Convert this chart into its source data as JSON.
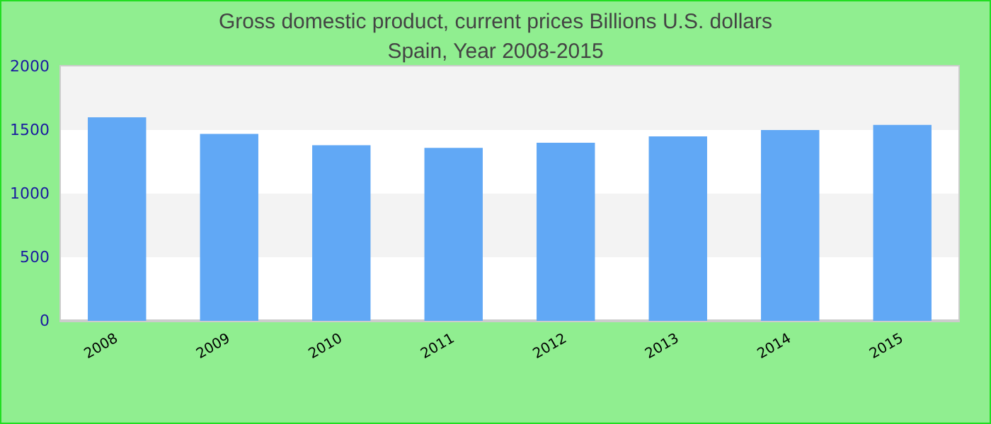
{
  "chart_data": {
    "type": "bar",
    "title": "Gross domestic product, current prices Billions U.S. dollars",
    "subtitle": "Spain, Year 2008-2015",
    "categories": [
      "2008",
      "2009",
      "2010",
      "2011",
      "2012",
      "2013",
      "2014",
      "2015"
    ],
    "values": [
      1600,
      1470,
      1380,
      1360,
      1400,
      1450,
      1500,
      1540
    ],
    "color": "#61a8f5",
    "ylim": [
      0,
      2000
    ],
    "yticks": [
      0,
      500,
      1000,
      1500,
      2000
    ]
  }
}
